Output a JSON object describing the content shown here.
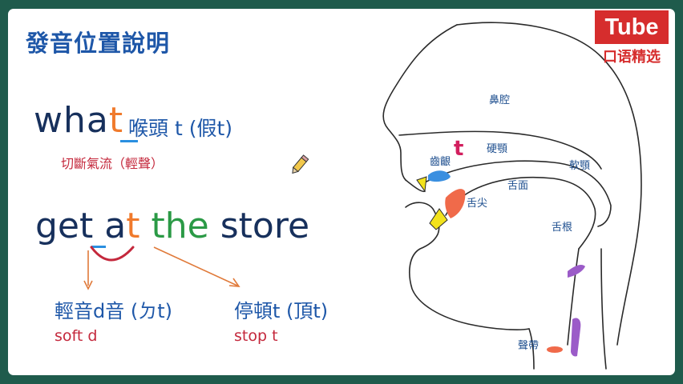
{
  "slide": {
    "title": "發音位置說明",
    "what": {
      "prefix": "wha",
      "t": "t",
      "note": "喉頭 t (假t)",
      "cut_note": "切斷氣流（輕聲）"
    },
    "phrase": {
      "get_prefix": "ge",
      "get_t": "t",
      "a": "a",
      "at_t": "t",
      "the": "the",
      "store": "store"
    },
    "flap": {
      "label": "輕音d音 (ㄉt)",
      "sub": "soft d"
    },
    "stop": {
      "label": "停頓t (頂t)",
      "sub": "stop t"
    }
  },
  "logo": {
    "top": "Tube",
    "bottom": "口语精选"
  },
  "diagram": {
    "labels": {
      "nasal_cavity": "鼻腔",
      "hard_palate": "硬顎",
      "alveolar_ridge": "齒齦",
      "soft_palate": "軟顎",
      "tongue_surface": "舌面",
      "tongue_tip": "舌尖",
      "tongue_root": "舌根",
      "vocal_cords": "聲帶",
      "t_mark": "t"
    },
    "colors": {
      "alveolar": "#3a8fe0",
      "tongue_tip": "#f06a4a",
      "teeth": "#f2e21c",
      "velum": "#9b5bc8",
      "vocal": "#f06a4a"
    }
  }
}
